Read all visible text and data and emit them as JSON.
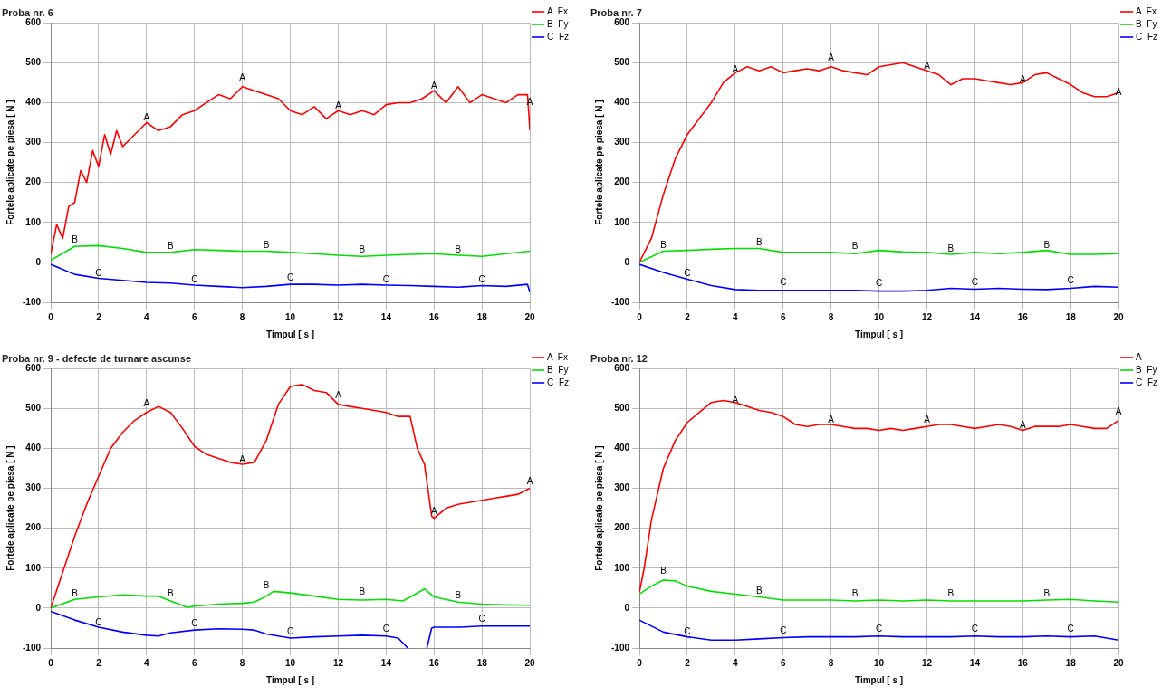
{
  "chart_data": [
    {
      "type": "line",
      "title": "Proba nr. 6",
      "xlabel": "Timpul [ s ]",
      "ylabel": "Fortele aplicate pe piesa [ N ]",
      "xlim": [
        0,
        20
      ],
      "xticks": [
        0,
        2,
        4,
        6,
        8,
        10,
        12,
        14,
        16,
        18,
        20
      ],
      "ylim": [
        -100,
        600
      ],
      "yticks": [
        -100,
        0,
        100,
        200,
        300,
        400,
        500,
        600
      ],
      "grid": true,
      "legend": "right",
      "series": [
        {
          "name": "A  Fx",
          "color": "#ff0000",
          "x": [
            0,
            0.25,
            0.5,
            0.75,
            1,
            1.25,
            1.5,
            1.75,
            2,
            2.25,
            2.5,
            2.75,
            3,
            3.5,
            4,
            4.5,
            5,
            5.5,
            6,
            6.5,
            7,
            7.5,
            8,
            8.5,
            9,
            9.5,
            10,
            10.5,
            11,
            11.5,
            12,
            12.5,
            13,
            13.5,
            14,
            14.5,
            15,
            15.5,
            16,
            16.5,
            17,
            17.5,
            18,
            18.5,
            19,
            19.5,
            19.9,
            20
          ],
          "values": [
            20,
            95,
            60,
            140,
            150,
            230,
            200,
            280,
            240,
            320,
            270,
            330,
            290,
            320,
            350,
            330,
            340,
            370,
            380,
            400,
            420,
            410,
            440,
            430,
            420,
            410,
            380,
            370,
            390,
            360,
            380,
            370,
            380,
            370,
            395,
            400,
            400,
            410,
            430,
            400,
            440,
            400,
            420,
            410,
            400,
            420,
            420,
            330
          ]
        },
        {
          "name": "B  Fy",
          "color": "#00e000",
          "x": [
            0,
            1,
            2,
            3,
            4,
            5,
            6,
            7,
            8,
            9,
            10,
            11,
            12,
            13,
            14,
            15,
            16,
            17,
            18,
            19,
            20
          ],
          "values": [
            5,
            40,
            42,
            35,
            25,
            25,
            32,
            30,
            28,
            28,
            25,
            22,
            18,
            15,
            18,
            20,
            22,
            18,
            15,
            22,
            28
          ]
        },
        {
          "name": "C  Fz",
          "color": "#0000ff",
          "x": [
            0,
            1,
            2,
            3,
            4,
            5,
            6,
            7,
            8,
            9,
            10,
            11,
            12,
            13,
            14,
            15,
            16,
            17,
            18,
            19,
            19.9,
            20
          ],
          "values": [
            -5,
            -30,
            -40,
            -45,
            -50,
            -52,
            -57,
            -60,
            -63,
            -60,
            -55,
            -55,
            -57,
            -55,
            -57,
            -58,
            -60,
            -62,
            -58,
            -60,
            -55,
            -75
          ]
        }
      ],
      "annotations": [
        {
          "text": "A",
          "x": 4,
          "y": 350
        },
        {
          "text": "A",
          "x": 8,
          "y": 450
        },
        {
          "text": "A",
          "x": 12,
          "y": 380
        },
        {
          "text": "A",
          "x": 16,
          "y": 430
        },
        {
          "text": "A",
          "x": 20,
          "y": 390
        },
        {
          "text": "B",
          "x": 1,
          "y": 45
        },
        {
          "text": "B",
          "x": 5,
          "y": 28
        },
        {
          "text": "B",
          "x": 9,
          "y": 32
        },
        {
          "text": "B",
          "x": 13,
          "y": 20
        },
        {
          "text": "B",
          "x": 17,
          "y": 20
        },
        {
          "text": "C",
          "x": 2,
          "y": -40
        },
        {
          "text": "C",
          "x": 6,
          "y": -55
        },
        {
          "text": "C",
          "x": 10,
          "y": -50
        },
        {
          "text": "C",
          "x": 14,
          "y": -55
        },
        {
          "text": "C",
          "x": 18,
          "y": -55
        }
      ]
    },
    {
      "type": "line",
      "title": "Proba nr. 7",
      "xlabel": "Timpul [ s ]",
      "ylabel": "Fortele aplicate pe piesa [ N ]",
      "xlim": [
        0,
        20
      ],
      "xticks": [
        0,
        2,
        4,
        6,
        8,
        10,
        12,
        14,
        16,
        18,
        20
      ],
      "ylim": [
        -100,
        600
      ],
      "yticks": [
        -100,
        0,
        100,
        200,
        300,
        400,
        500,
        600
      ],
      "grid": true,
      "legend": "right",
      "series": [
        {
          "name": "A  Fx",
          "color": "#ff0000",
          "x": [
            0,
            0.5,
            1,
            1.5,
            2,
            2.5,
            3,
            3.5,
            4,
            4.5,
            5,
            5.5,
            6,
            6.5,
            7,
            7.5,
            8,
            8.5,
            9,
            9.5,
            10,
            10.5,
            11,
            11.5,
            12,
            12.5,
            13,
            13.5,
            14,
            14.5,
            15,
            15.5,
            16,
            16.5,
            17,
            17.5,
            18,
            18.5,
            19,
            19.5,
            20
          ],
          "values": [
            0,
            60,
            170,
            260,
            320,
            360,
            400,
            450,
            475,
            490,
            480,
            490,
            475,
            480,
            485,
            480,
            490,
            480,
            475,
            470,
            490,
            495,
            500,
            490,
            480,
            470,
            445,
            460,
            460,
            455,
            450,
            445,
            450,
            470,
            475,
            460,
            445,
            425,
            415,
            415,
            425
          ]
        },
        {
          "name": "B  Fy",
          "color": "#00e000",
          "x": [
            0,
            1,
            2,
            3,
            4,
            5,
            6,
            7,
            8,
            9,
            10,
            11,
            12,
            13,
            14,
            15,
            16,
            17,
            18,
            19,
            20
          ],
          "values": [
            0,
            28,
            30,
            33,
            35,
            35,
            25,
            25,
            25,
            22,
            30,
            26,
            25,
            20,
            25,
            22,
            25,
            30,
            20,
            20,
            22
          ]
        },
        {
          "name": "C  Fz",
          "color": "#0000ff",
          "x": [
            0,
            1,
            2,
            3,
            4,
            5,
            6,
            7,
            8,
            9,
            10,
            11,
            12,
            13,
            14,
            15,
            16,
            17,
            18,
            19,
            20
          ],
          "values": [
            -5,
            -25,
            -42,
            -58,
            -68,
            -70,
            -70,
            -70,
            -70,
            -70,
            -72,
            -72,
            -70,
            -65,
            -67,
            -65,
            -67,
            -68,
            -65,
            -60,
            -62
          ]
        }
      ],
      "annotations": [
        {
          "text": "A",
          "x": 4,
          "y": 470
        },
        {
          "text": "A",
          "x": 8,
          "y": 500
        },
        {
          "text": "A",
          "x": 12,
          "y": 480
        },
        {
          "text": "A",
          "x": 16,
          "y": 445
        },
        {
          "text": "A",
          "x": 20,
          "y": 415
        },
        {
          "text": "B",
          "x": 1,
          "y": 32
        },
        {
          "text": "B",
          "x": 5,
          "y": 38
        },
        {
          "text": "B",
          "x": 9,
          "y": 28
        },
        {
          "text": "B",
          "x": 13,
          "y": 22
        },
        {
          "text": "B",
          "x": 17,
          "y": 32
        },
        {
          "text": "C",
          "x": 2,
          "y": -40
        },
        {
          "text": "C",
          "x": 6,
          "y": -62
        },
        {
          "text": "C",
          "x": 10,
          "y": -65
        },
        {
          "text": "C",
          "x": 14,
          "y": -62
        },
        {
          "text": "C",
          "x": 18,
          "y": -58
        }
      ]
    },
    {
      "type": "line",
      "title": "Proba nr. 9 - defecte de turnare ascunse",
      "xlabel": "Timpul [ s ]",
      "ylabel": "Fortele aplicate pe piesa [ N ]",
      "xlim": [
        0,
        20
      ],
      "xticks": [
        0,
        2,
        4,
        6,
        8,
        10,
        12,
        14,
        16,
        18,
        20
      ],
      "ylim": [
        -100,
        600
      ],
      "yticks": [
        -100,
        0,
        100,
        200,
        300,
        400,
        500,
        600
      ],
      "grid": true,
      "legend": "right",
      "series": [
        {
          "name": "A  Fx",
          "color": "#ff0000",
          "x": [
            0,
            0.5,
            1,
            1.5,
            2,
            2.5,
            3,
            3.5,
            4,
            4.5,
            5,
            5.5,
            6,
            6.5,
            7,
            7.5,
            8,
            8.5,
            9,
            9.5,
            10,
            10.5,
            11,
            11.5,
            12,
            12.5,
            13,
            13.5,
            14,
            14.5,
            15,
            15.3,
            15.6,
            15.9,
            16,
            16.5,
            17,
            17.5,
            18,
            18.5,
            19,
            19.5,
            20
          ],
          "values": [
            0,
            90,
            180,
            260,
            330,
            400,
            440,
            470,
            490,
            505,
            490,
            450,
            405,
            385,
            375,
            365,
            360,
            365,
            420,
            510,
            555,
            560,
            545,
            540,
            510,
            505,
            500,
            495,
            490,
            480,
            480,
            400,
            360,
            230,
            225,
            250,
            260,
            265,
            270,
            275,
            280,
            285,
            300
          ]
        },
        {
          "name": "B  Fy",
          "color": "#00e000",
          "x": [
            0,
            1,
            2,
            3,
            4,
            4.5,
            5,
            5.7,
            6,
            7,
            8,
            8.5,
            9,
            9.3,
            10,
            11,
            12,
            13,
            14,
            14.7,
            15.6,
            16,
            17,
            18,
            19,
            20
          ],
          "values": [
            0,
            22,
            28,
            33,
            30,
            30,
            18,
            2,
            5,
            10,
            12,
            15,
            30,
            42,
            38,
            30,
            22,
            20,
            22,
            18,
            48,
            28,
            15,
            10,
            8,
            7
          ]
        },
        {
          "name": "C  Fz",
          "color": "#0000ff",
          "x": [
            0,
            1,
            2,
            3,
            4,
            4.5,
            5,
            6,
            7,
            8,
            8.5,
            9,
            10,
            11,
            12,
            13,
            14,
            14.5,
            14.9,
            15.3,
            15.7,
            15.9,
            16,
            17,
            18,
            19,
            20
          ],
          "values": [
            -8,
            -30,
            -48,
            -60,
            -68,
            -70,
            -62,
            -55,
            -52,
            -53,
            -55,
            -65,
            -75,
            -72,
            -70,
            -68,
            -70,
            -75,
            -100,
            null,
            -100,
            -50,
            -48,
            -48,
            -45,
            -45,
            -45
          ]
        }
      ],
      "annotations": [
        {
          "text": "A",
          "x": 4,
          "y": 500
        },
        {
          "text": "A",
          "x": 8,
          "y": 360
        },
        {
          "text": "A",
          "x": 12,
          "y": 520
        },
        {
          "text": "A",
          "x": 16,
          "y": 230
        },
        {
          "text": "A",
          "x": 20,
          "y": 305
        },
        {
          "text": "B",
          "x": 1,
          "y": 25
        },
        {
          "text": "B",
          "x": 5,
          "y": 25
        },
        {
          "text": "B",
          "x": 9,
          "y": 45
        },
        {
          "text": "B",
          "x": 13,
          "y": 28
        },
        {
          "text": "B",
          "x": 17,
          "y": 20
        },
        {
          "text": "C",
          "x": 2,
          "y": -48
        },
        {
          "text": "C",
          "x": 6,
          "y": -50
        },
        {
          "text": "C",
          "x": 10,
          "y": -70
        },
        {
          "text": "C",
          "x": 14,
          "y": -65
        },
        {
          "text": "C",
          "x": 18,
          "y": -40
        }
      ]
    },
    {
      "type": "line",
      "title": "Proba nr. 12",
      "xlabel": "Timpul [ s ]",
      "ylabel": "Fortele aplicate pe piesa [ N ]",
      "xlim": [
        0,
        20
      ],
      "xticks": [
        0,
        2,
        4,
        6,
        8,
        10,
        12,
        14,
        16,
        18,
        20
      ],
      "ylim": [
        -100,
        600
      ],
      "yticks": [
        -100,
        0,
        100,
        200,
        300,
        400,
        500,
        600
      ],
      "grid": true,
      "legend": "right",
      "series": [
        {
          "name": "A",
          "color": "#ff0000",
          "x": [
            0,
            0.2,
            0.5,
            1,
            1.5,
            2,
            2.5,
            3,
            3.5,
            4,
            4.5,
            5,
            5.5,
            6,
            6.5,
            7,
            7.5,
            8,
            8.5,
            9,
            9.5,
            10,
            10.5,
            11,
            11.5,
            12,
            12.5,
            13,
            13.5,
            14,
            14.5,
            15,
            15.5,
            16,
            16.5,
            17,
            17.5,
            18,
            18.5,
            19,
            19.5,
            20
          ],
          "values": [
            40,
            100,
            220,
            350,
            420,
            465,
            490,
            515,
            520,
            515,
            505,
            495,
            490,
            480,
            460,
            455,
            460,
            460,
            455,
            450,
            450,
            445,
            450,
            445,
            450,
            455,
            460,
            460,
            455,
            450,
            455,
            460,
            455,
            445,
            455,
            455,
            455,
            460,
            455,
            450,
            450,
            470
          ]
        },
        {
          "name": "B  Fy",
          "color": "#00e000",
          "x": [
            0,
            0.5,
            1,
            1.5,
            2,
            3,
            4,
            5,
            6,
            7,
            8,
            9,
            10,
            11,
            12,
            13,
            14,
            15,
            16,
            17,
            18,
            19,
            20
          ],
          "values": [
            35,
            55,
            70,
            68,
            55,
            42,
            35,
            28,
            20,
            20,
            20,
            18,
            20,
            18,
            20,
            18,
            18,
            18,
            18,
            20,
            22,
            18,
            15
          ]
        },
        {
          "name": "C  Fz",
          "color": "#0000ff",
          "x": [
            0,
            1,
            2,
            3,
            4,
            5,
            6,
            7,
            8,
            9,
            10,
            11,
            12,
            13,
            14,
            15,
            16,
            17,
            18,
            19,
            20
          ],
          "values": [
            -30,
            -60,
            -72,
            -80,
            -80,
            -77,
            -74,
            -72,
            -72,
            -72,
            -70,
            -72,
            -72,
            -72,
            -70,
            -72,
            -72,
            -70,
            -72,
            -70,
            -80
          ]
        }
      ],
      "annotations": [
        {
          "text": "A",
          "x": 4,
          "y": 510
        },
        {
          "text": "A",
          "x": 8,
          "y": 460
        },
        {
          "text": "A",
          "x": 12,
          "y": 460
        },
        {
          "text": "A",
          "x": 16,
          "y": 445
        },
        {
          "text": "A",
          "x": 20,
          "y": 480
        },
        {
          "text": "B",
          "x": 1,
          "y": 80
        },
        {
          "text": "B",
          "x": 5,
          "y": 30
        },
        {
          "text": "B",
          "x": 9,
          "y": 25
        },
        {
          "text": "B",
          "x": 13,
          "y": 25
        },
        {
          "text": "B",
          "x": 17,
          "y": 25
        },
        {
          "text": "C",
          "x": 2,
          "y": -70
        },
        {
          "text": "C",
          "x": 6,
          "y": -68
        },
        {
          "text": "C",
          "x": 10,
          "y": -65
        },
        {
          "text": "C",
          "x": 14,
          "y": -65
        },
        {
          "text": "C",
          "x": 18,
          "y": -65
        }
      ]
    }
  ]
}
